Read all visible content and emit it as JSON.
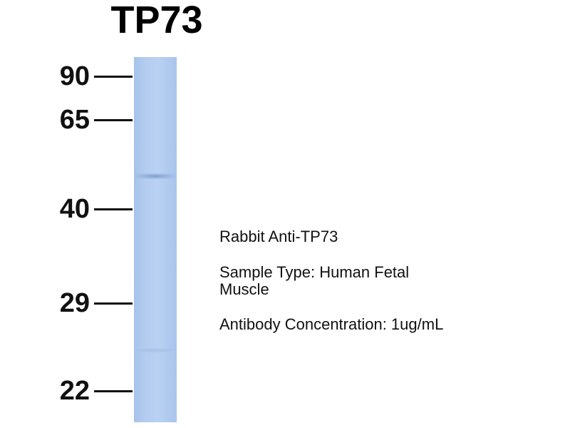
{
  "title": "TP73",
  "markers": [
    "90",
    "65",
    "40",
    "29",
    "22"
  ],
  "notes": {
    "antibody": "Rabbit Anti-TP73",
    "sample_type": [
      "Sample Type: Human Fetal",
      "Muscle"
    ],
    "concentration": "Antibody Concentration: 1ug/mL"
  }
}
